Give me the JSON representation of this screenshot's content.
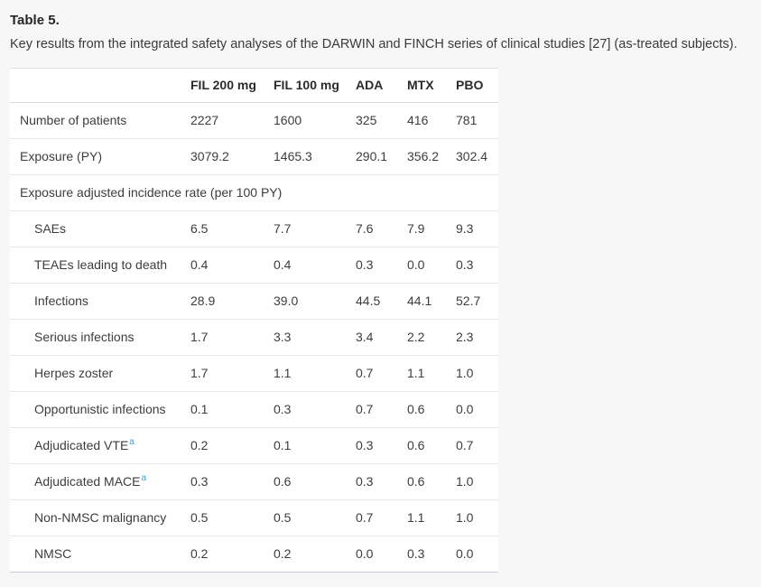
{
  "page": {
    "background_color": "#f7f7f8",
    "table_background_color": "#ffffff"
  },
  "colors": {
    "footnote_link": "#38a0d8",
    "body_text": "#3d3d3d",
    "heading_text": "#262626",
    "row_divider": "#e5e7ea",
    "table_bottom_border": "#c7ced8"
  },
  "table5": {
    "title": "Table 5.",
    "caption": "Key results from the integrated safety analyses of the DARWIN and FINCH series of clinical studies [27] (as-treated subjects).",
    "columns": [
      "",
      "FIL 200 mg",
      "FIL 100 mg",
      "ADA",
      "MTX",
      "PBO"
    ],
    "rows": [
      {
        "label": "Number of patients",
        "indent": false,
        "values": [
          "2227",
          "1600",
          "325",
          "416",
          "781"
        ]
      },
      {
        "label": "Exposure (PY)",
        "indent": false,
        "values": [
          "3079.2",
          "1465.3",
          "290.1",
          "356.2",
          "302.4"
        ]
      },
      {
        "label": "Exposure adjusted incidence rate (per 100 PY)",
        "section": true
      },
      {
        "label": "SAEs",
        "indent": true,
        "values": [
          "6.5",
          "7.7",
          "7.6",
          "7.9",
          "9.3"
        ]
      },
      {
        "label": "TEAEs leading to death",
        "indent": true,
        "values": [
          "0.4",
          "0.4",
          "0.3",
          "0.0",
          "0.3"
        ]
      },
      {
        "label": "Infections",
        "indent": true,
        "values": [
          "28.9",
          "39.0",
          "44.5",
          "44.1",
          "52.7"
        ]
      },
      {
        "label": "Serious infections",
        "indent": true,
        "values": [
          "1.7",
          "3.3",
          "3.4",
          "2.2",
          "2.3"
        ]
      },
      {
        "label": "Herpes zoster",
        "indent": true,
        "values": [
          "1.7",
          "1.1",
          "0.7",
          "1.1",
          "1.0"
        ]
      },
      {
        "label": "Opportunistic infections",
        "indent": true,
        "values": [
          "0.1",
          "0.3",
          "0.7",
          "0.6",
          "0.0"
        ]
      },
      {
        "label": "Adjudicated VTE",
        "footnote": "a",
        "indent": true,
        "values": [
          "0.2",
          "0.1",
          "0.3",
          "0.6",
          "0.7"
        ]
      },
      {
        "label": "Adjudicated MACE",
        "footnote": "a",
        "indent": true,
        "values": [
          "0.3",
          "0.6",
          "0.3",
          "0.6",
          "1.0"
        ]
      },
      {
        "label": "Non-NMSC malignancy",
        "indent": true,
        "values": [
          "0.5",
          "0.5",
          "0.7",
          "1.1",
          "1.0"
        ]
      },
      {
        "label": "NMSC",
        "indent": true,
        "values": [
          "0.2",
          "0.2",
          "0.0",
          "0.3",
          "0.0"
        ]
      }
    ]
  }
}
